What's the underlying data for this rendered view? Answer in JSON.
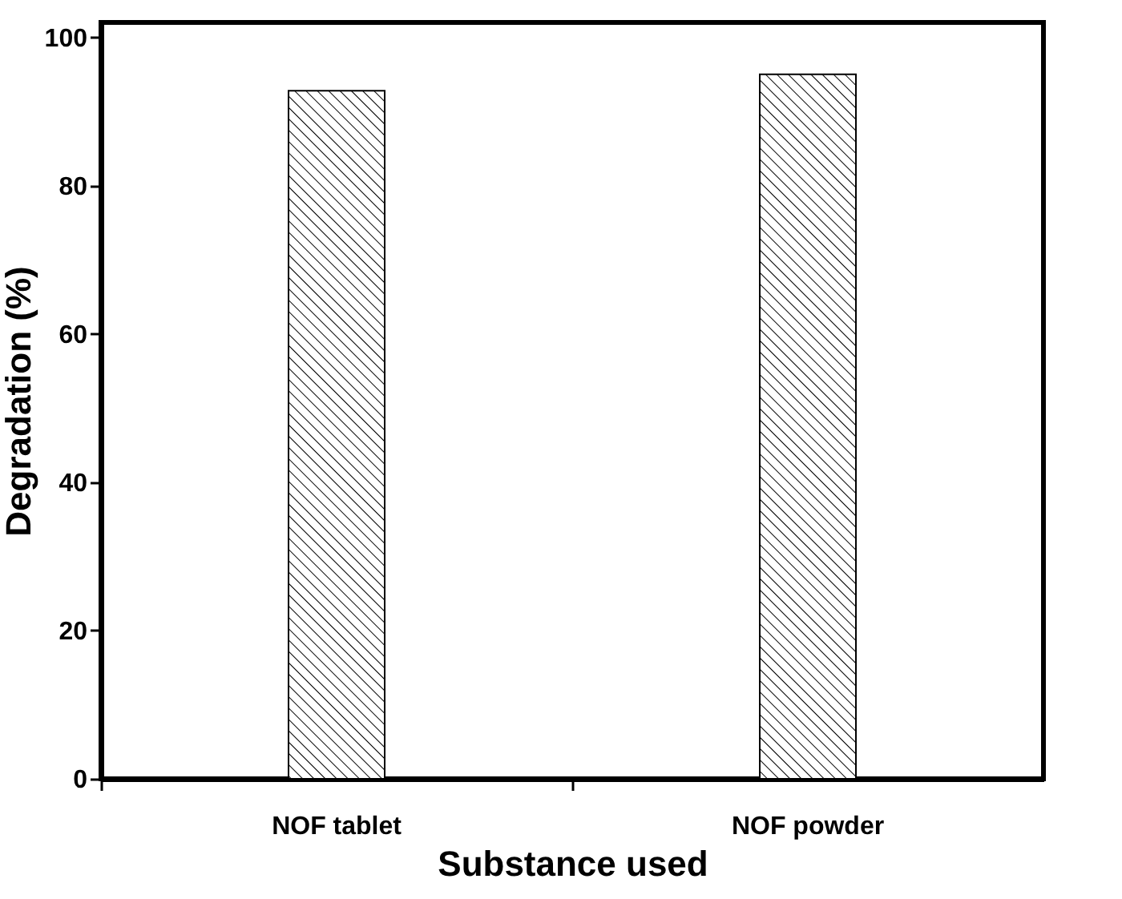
{
  "chart_data": {
    "type": "bar",
    "xlabel": "Substance used",
    "ylabel": "Degradation (%)",
    "categories": [
      "NOF tablet",
      "NOF powder"
    ],
    "values": [
      92.8,
      95
    ],
    "ylim": [
      0,
      102
    ],
    "yticks": [
      0,
      20,
      40,
      60,
      80,
      100
    ],
    "grid": false
  }
}
